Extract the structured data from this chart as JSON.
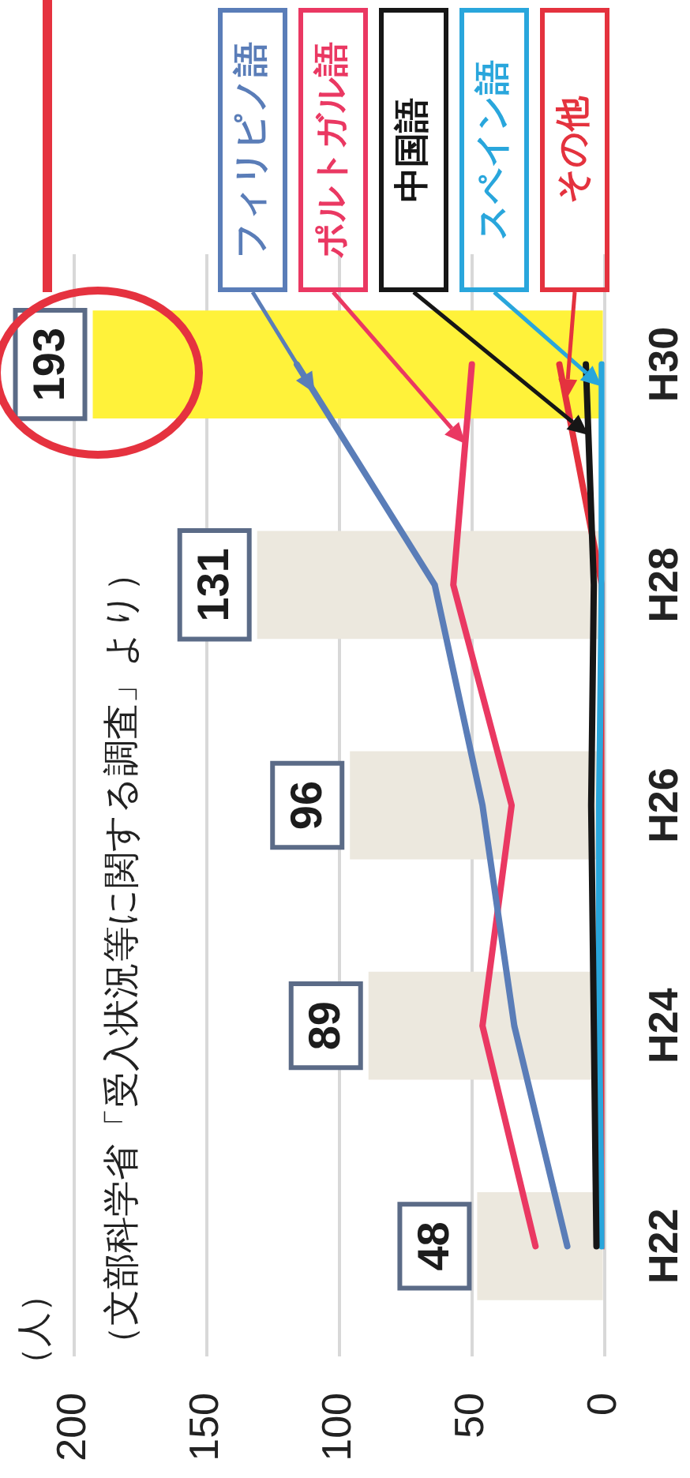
{
  "chart_data": {
    "type": "line",
    "orientation": "horizontal",
    "annotations": [
      "（文部科学省「受入状況等に関する調査」より）",
      "（人）"
    ],
    "categories": [
      "H30",
      "H28",
      "H26",
      "H24",
      "H22"
    ],
    "series": [
      {
        "type": "bar",
        "colors": [
          "#fff23a",
          "#ece8de",
          "#ece8de",
          "#ece8de",
          "#ece8de"
        ],
        "values": [
          193,
          131,
          96,
          89,
          48
        ],
        "value_labels": [
          "193",
          "131",
          "96",
          "89",
          "48"
        ]
      },
      {
        "name": "フィリピノ語",
        "color": "#5a7db8",
        "values": [
          116,
          64,
          46,
          34,
          14
        ]
      },
      {
        "name": "ポルトガル語",
        "color": "#ea3862",
        "values": [
          50,
          57,
          35,
          46,
          26
        ]
      },
      {
        "name": "中国語",
        "color": "#161616",
        "values": [
          7,
          4,
          5,
          4,
          3
        ]
      },
      {
        "name": "スペイン語",
        "color": "#29a6dc",
        "values": [
          1,
          1,
          2,
          2,
          1
        ]
      },
      {
        "name": "その他",
        "color": "#e4323e",
        "values": [
          17,
          1,
          0,
          0,
          0
        ]
      }
    ],
    "xlim": [
      200,
      0
    ],
    "xticks": [
      200,
      150,
      100,
      50,
      0
    ],
    "grid": "x",
    "marker": "none",
    "line_style": "solid"
  }
}
